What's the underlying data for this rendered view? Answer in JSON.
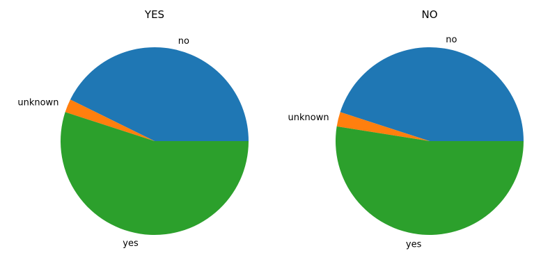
{
  "chart_data": [
    {
      "type": "pie",
      "title": "YES",
      "labels": [
        "no",
        "unknown",
        "yes"
      ],
      "values": [
        42.7,
        2.3,
        55.0
      ],
      "colors": [
        "#1f77b4",
        "#ff7f0e",
        "#2ca02c"
      ]
    },
    {
      "type": "pie",
      "title": "NO",
      "labels": [
        "no",
        "unknown",
        "yes"
      ],
      "values": [
        45.0,
        2.5,
        52.5
      ],
      "colors": [
        "#1f77b4",
        "#ff7f0e",
        "#2ca02c"
      ]
    }
  ]
}
